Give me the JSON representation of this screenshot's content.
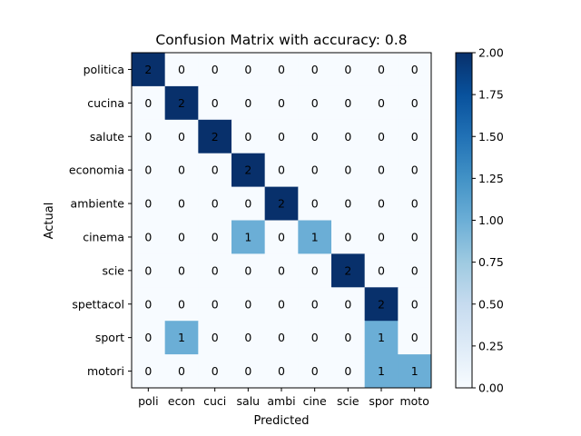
{
  "chart_data": {
    "type": "heatmap",
    "title": "Confusion Matrix with accuracy: 0.8",
    "xlabel": "Predicted",
    "ylabel": "Actual",
    "x_categories": [
      "poli",
      "econ",
      "cuci",
      "salu",
      "ambi",
      "cine",
      "scie",
      "spor",
      "moto"
    ],
    "y_categories": [
      "politica",
      "cucina",
      "salute",
      "economia",
      "ambiente",
      "cinema",
      "scie",
      "spettacol",
      "sport",
      "motori"
    ],
    "values": [
      [
        2,
        0,
        0,
        0,
        0,
        0,
        0,
        0,
        0
      ],
      [
        0,
        2,
        0,
        0,
        0,
        0,
        0,
        0,
        0
      ],
      [
        0,
        0,
        2,
        0,
        0,
        0,
        0,
        0,
        0
      ],
      [
        0,
        0,
        0,
        2,
        0,
        0,
        0,
        0,
        0
      ],
      [
        0,
        0,
        0,
        0,
        2,
        0,
        0,
        0,
        0
      ],
      [
        0,
        0,
        0,
        1,
        0,
        1,
        0,
        0,
        0
      ],
      [
        0,
        0,
        0,
        0,
        0,
        0,
        2,
        0,
        0
      ],
      [
        0,
        0,
        0,
        0,
        0,
        0,
        0,
        2,
        0
      ],
      [
        0,
        1,
        0,
        0,
        0,
        0,
        0,
        1,
        0
      ],
      [
        0,
        0,
        0,
        0,
        0,
        0,
        0,
        1,
        1
      ]
    ],
    "colorbar": {
      "range": [
        0,
        2
      ],
      "ticks": [
        "0.00",
        "0.25",
        "0.50",
        "0.75",
        "1.00",
        "1.25",
        "1.50",
        "1.75",
        "2.00"
      ],
      "colormap": "Blues"
    },
    "colors": {
      "low": "#f7fbff",
      "mid": "#6baed6",
      "high": "#08306b"
    }
  }
}
